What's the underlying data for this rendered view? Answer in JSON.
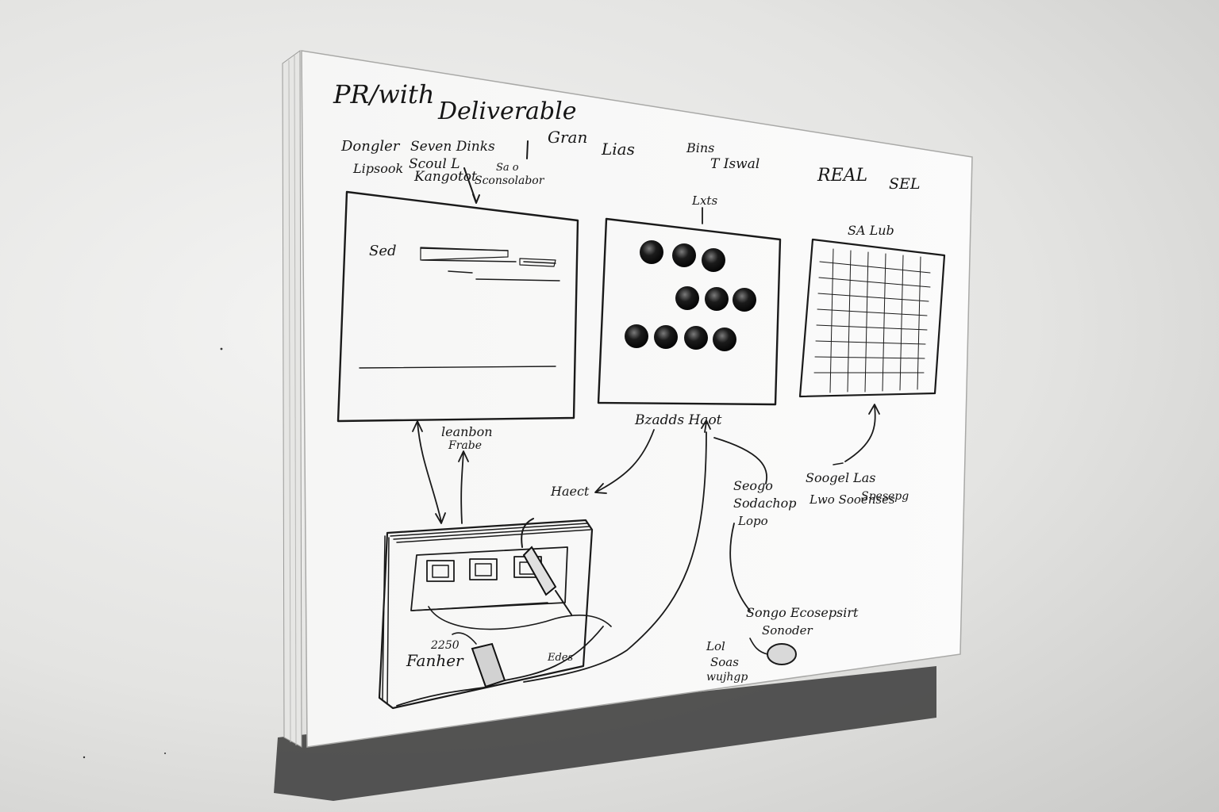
{
  "board": {
    "scribbles": {
      "title_left": "PR/with",
      "title_main": "Deliverable",
      "header_col1_a": "Dongler",
      "header_col1_b": "Lipsook",
      "header_col2_a": "Seven Dinks",
      "header_col2_b": "Scoul L",
      "header_col2_c": "Kangotot",
      "header_col3_a": "Gran",
      "header_col3_b": "Lias",
      "header_mid_a": "Sa o",
      "header_mid_b": "Sconsolabor",
      "header_right_a": "Bins",
      "header_right_b": "T Iswal",
      "header_far_a": "REAL",
      "header_far_b": "SEL",
      "panel1_label": "Sed",
      "panel2_top": "Lxts",
      "panel3_top": "SA Lub",
      "label_panel1_a": "leanbon",
      "label_panel1_b": "Frabe",
      "label_panel2": "Bzadds Haot",
      "label_heat": "Haect",
      "note_a1": "Seogo",
      "note_a2": "Sodachop",
      "note_a3": "Lopo",
      "note_b1": "Soogel Las",
      "note_b2": "Lwo Sooenses",
      "note_b3": "Spesepg",
      "note_c1": "Songo Ecosepsirt",
      "note_c2": "Sonoder",
      "note_d1": "Lol",
      "note_d2": "Soas",
      "note_d3": "wujhgp",
      "device_a": "2250",
      "device_b": "Fanher",
      "device_c": "Edes"
    }
  }
}
